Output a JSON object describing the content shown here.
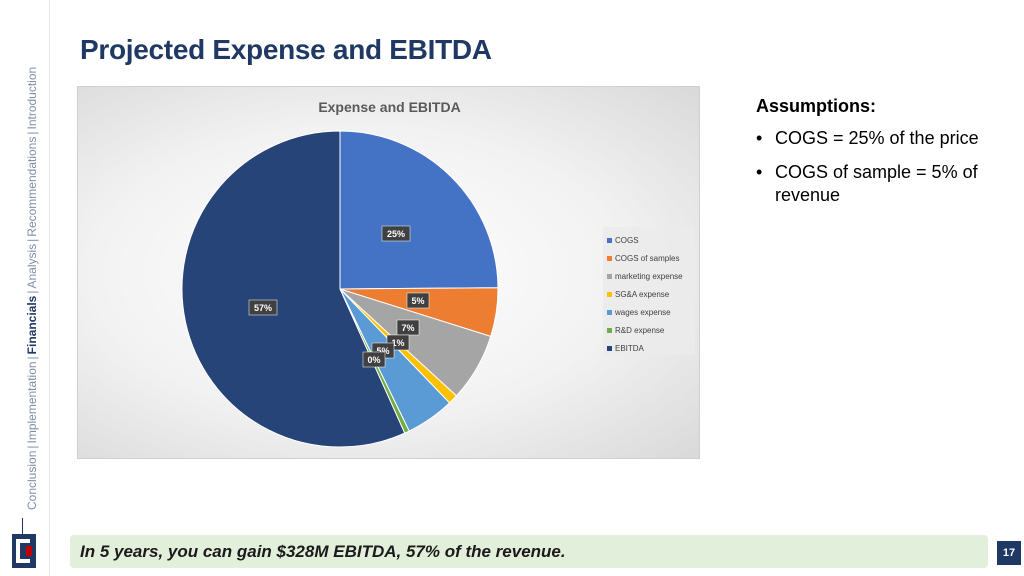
{
  "nav": {
    "items": [
      "Conclusion",
      "Implementation",
      "Financials",
      "Analysis",
      "Recommendations",
      "Introduction"
    ],
    "separators": [
      "|",
      "|",
      "|",
      "|",
      "|"
    ],
    "active": "Financials"
  },
  "title": "Projected Expense and EBITDA",
  "chart_data": {
    "type": "pie",
    "title": "Expense and EBITDA",
    "categories": [
      "COGS",
      "COGS of samples",
      "marketing expense",
      "SG&A expense",
      "wages expense",
      "R&D expense",
      "EBITDA"
    ],
    "values": [
      25,
      5,
      7,
      1,
      5,
      0.5,
      57
    ],
    "labels": [
      "25%",
      "5%",
      "7%",
      "1%",
      "5%",
      "0%",
      "57%"
    ],
    "colors": [
      "#4472c4",
      "#ed7d31",
      "#a5a5a5",
      "#ffc000",
      "#5b9bd5",
      "#70ad47",
      "#264478"
    ],
    "legend_position": "right"
  },
  "assumptions": {
    "heading": "Assumptions:",
    "bullet": "•",
    "items": [
      "COGS = 25% of the price",
      "COGS of sample = 5% of revenue"
    ]
  },
  "banner": "In 5 years, you can gain $328M EBITDA, 57% of the revenue.",
  "page_number": "17"
}
